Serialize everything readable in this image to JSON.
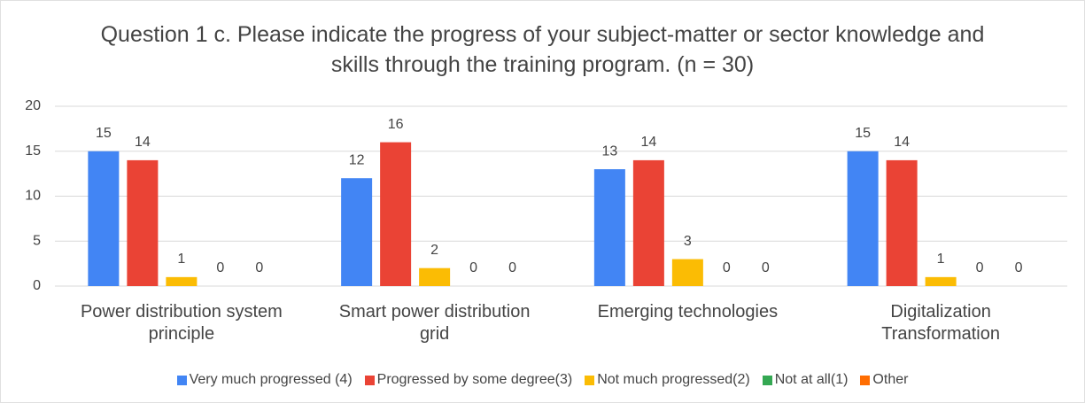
{
  "chart_data": {
    "type": "bar",
    "title": "Question 1 c. Please indicate the progress of your subject-matter or sector knowledge and skills through the training program. (n = 30)",
    "categories": [
      "Power distribution system principle",
      "Smart power distribution grid",
      "Emerging technologies",
      "Digitalization Transformation"
    ],
    "series": [
      {
        "name": "Very much progressed (4)",
        "color": "#4285f4",
        "values": [
          15,
          12,
          13,
          15
        ]
      },
      {
        "name": "Progressed by some degree(3)",
        "color": "#ea4335",
        "values": [
          14,
          16,
          14,
          14
        ]
      },
      {
        "name": "Not much progressed(2)",
        "color": "#fbbc04",
        "values": [
          1,
          2,
          3,
          1
        ]
      },
      {
        "name": "Not at all(1)",
        "color": "#34a853",
        "values": [
          0,
          0,
          0,
          0
        ]
      },
      {
        "name": "Other",
        "color": "#ff6d01",
        "values": [
          0,
          0,
          0,
          0
        ]
      }
    ],
    "ylim": [
      0,
      20
    ],
    "yticks": [
      0,
      5,
      10,
      15,
      20
    ],
    "grid": true,
    "legend": "bottom"
  }
}
